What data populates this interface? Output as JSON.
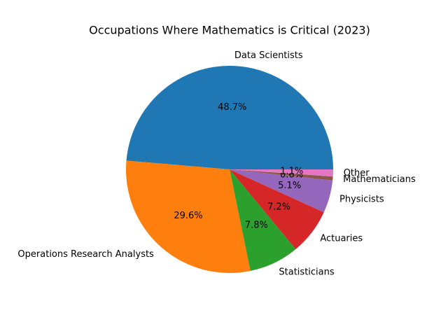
{
  "chart_data": {
    "type": "pie",
    "title": "Occupations Where Mathematics is Critical (2023)",
    "categories": [
      "Data Scientists",
      "Operations Research Analysts",
      "Statisticians",
      "Actuaries",
      "Physicists",
      "Mathematicians",
      "Other"
    ],
    "values": [
      48.7,
      29.6,
      7.8,
      7.2,
      5.1,
      0.6,
      1.1
    ],
    "value_labels": [
      "48.7%",
      "29.6%",
      "7.8%",
      "7.2%",
      "5.1%",
      "0.6%",
      "1.1%"
    ],
    "colors": [
      "#1f77b4",
      "#ff7f0e",
      "#2ca02c",
      "#d62728",
      "#9467bd",
      "#8c564b",
      "#e377c2"
    ]
  }
}
